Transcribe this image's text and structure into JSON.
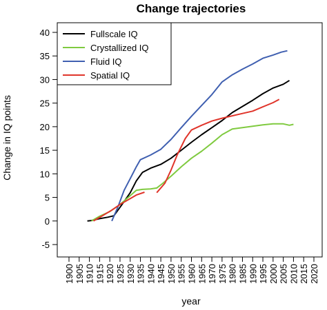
{
  "chart_data": {
    "type": "line",
    "title": "Change trajectories",
    "xlabel": "year",
    "ylabel": "Change in IQ points",
    "xlim": [
      1900,
      2020
    ],
    "ylim": [
      -5,
      40
    ],
    "x_ticks": [
      1900,
      1905,
      1910,
      1915,
      1920,
      1925,
      1930,
      1935,
      1940,
      1945,
      1950,
      1955,
      1960,
      1965,
      1970,
      1975,
      1980,
      1985,
      1990,
      1995,
      2000,
      2005,
      2010,
      2015,
      2020
    ],
    "y_ticks": [
      -5,
      0,
      5,
      10,
      15,
      20,
      25,
      30,
      35,
      40
    ],
    "grid": false,
    "legend_position": "top-left",
    "series": [
      {
        "name": "Fullscale IQ",
        "color": "#000000",
        "points": [
          [
            1909,
            0
          ],
          [
            1911,
            0.1
          ],
          [
            1915,
            0.5
          ],
          [
            1919,
            0.8
          ],
          [
            1922,
            1.1
          ],
          [
            1926,
            3.5
          ],
          [
            1930,
            6
          ],
          [
            1933,
            8.5
          ],
          [
            1936,
            10.3
          ],
          [
            1940,
            11.2
          ],
          [
            1945,
            12
          ],
          [
            1950,
            13.3
          ],
          [
            1955,
            15
          ],
          [
            1960,
            16.7
          ],
          [
            1965,
            18.3
          ],
          [
            1970,
            19.8
          ],
          [
            1975,
            21.3
          ],
          [
            1980,
            23
          ],
          [
            1985,
            24.3
          ],
          [
            1990,
            25.6
          ],
          [
            1995,
            27
          ],
          [
            2000,
            28.2
          ],
          [
            2005,
            29
          ],
          [
            2008,
            29.8
          ]
        ]
      },
      {
        "name": "Crystallized IQ",
        "color": "#7fca3f",
        "points": [
          [
            1911,
            0
          ],
          [
            1915,
            1
          ],
          [
            1920,
            2
          ],
          [
            1925,
            3.5
          ],
          [
            1929,
            5
          ],
          [
            1933,
            6.5
          ],
          [
            1936,
            6.7
          ],
          [
            1940,
            6.8
          ],
          [
            1943,
            7
          ],
          [
            1946,
            8
          ],
          [
            1950,
            9.5
          ],
          [
            1955,
            11.5
          ],
          [
            1960,
            13.3
          ],
          [
            1965,
            14.8
          ],
          [
            1970,
            16.5
          ],
          [
            1975,
            18.3
          ],
          [
            1980,
            19.5
          ],
          [
            1985,
            19.8
          ],
          [
            1990,
            20.1
          ],
          [
            1995,
            20.4
          ],
          [
            2000,
            20.6
          ],
          [
            2005,
            20.6
          ],
          [
            2008,
            20.3
          ],
          [
            2010,
            20.5
          ]
        ]
      },
      {
        "name": "Fluid IQ",
        "color": "#3f5fb0",
        "points": [
          [
            1921,
            0
          ],
          [
            1924,
            3
          ],
          [
            1927,
            6.5
          ],
          [
            1930,
            9
          ],
          [
            1933,
            11.5
          ],
          [
            1935,
            13
          ],
          [
            1940,
            14
          ],
          [
            1945,
            15.2
          ],
          [
            1950,
            17.3
          ],
          [
            1955,
            19.8
          ],
          [
            1960,
            22.2
          ],
          [
            1965,
            24.5
          ],
          [
            1970,
            26.8
          ],
          [
            1975,
            29.5
          ],
          [
            1980,
            31
          ],
          [
            1985,
            32.2
          ],
          [
            1990,
            33.3
          ],
          [
            1995,
            34.5
          ],
          [
            2000,
            35.2
          ],
          [
            2004,
            35.8
          ],
          [
            2007,
            36.1
          ]
        ]
      },
      {
        "name": "Spatial IQ",
        "color": "#e0342a",
        "points": [
          [
            1912,
            0
          ],
          [
            1916,
            1
          ],
          [
            1921,
            2.3
          ],
          [
            1925,
            3.5
          ],
          [
            1929,
            4.5
          ],
          [
            1933,
            5.5
          ],
          [
            1937,
            6.1
          ]
        ],
        "segment2": [
          [
            1943,
            6
          ],
          [
            1947,
            8
          ],
          [
            1950,
            10.8
          ],
          [
            1953,
            14
          ],
          [
            1957,
            17.5
          ],
          [
            1960,
            19.3
          ],
          [
            1965,
            20.3
          ],
          [
            1970,
            21.2
          ],
          [
            1975,
            21.8
          ],
          [
            1980,
            22.3
          ],
          [
            1985,
            22.8
          ],
          [
            1990,
            23.3
          ],
          [
            1995,
            24.2
          ],
          [
            2000,
            25.1
          ],
          [
            2003,
            25.8
          ]
        ]
      }
    ]
  }
}
